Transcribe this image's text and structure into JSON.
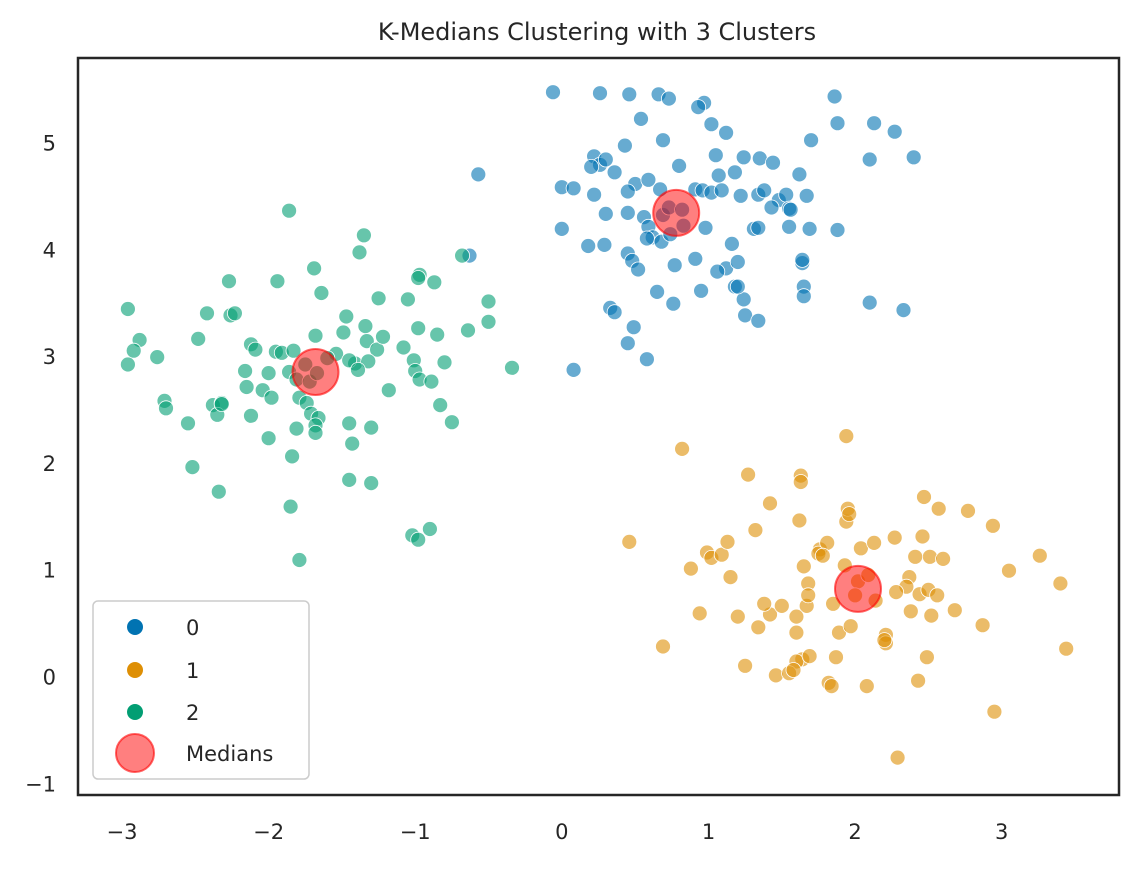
{
  "chart_data": {
    "type": "scatter",
    "title": "K-Medians Clustering with 3 Clusters",
    "xlabel": "",
    "ylabel": "",
    "xlim": [
      -3.3,
      3.8
    ],
    "ylim": [
      -1.1,
      5.8
    ],
    "xticks": [
      -3,
      -2,
      -1,
      0,
      1,
      2,
      3
    ],
    "yticks": [
      -1,
      0,
      1,
      2,
      3,
      4,
      5
    ],
    "xtick_labels": [
      "−3",
      "−2",
      "−1",
      "0",
      "1",
      "2",
      "3"
    ],
    "ytick_labels": [
      "−1",
      "0",
      "1",
      "2",
      "3",
      "4",
      "5"
    ],
    "grid": false,
    "legend_position": "lower-left",
    "series": [
      {
        "name": "0",
        "color": "#0173b2",
        "points": [
          [
            -0.06,
            5.48
          ],
          [
            0.26,
            5.47
          ],
          [
            0.46,
            5.46
          ],
          [
            0.66,
            5.46
          ],
          [
            0.73,
            5.42
          ],
          [
            0.97,
            5.38
          ],
          [
            0.93,
            5.34
          ],
          [
            1.86,
            5.44
          ],
          [
            0.54,
            5.23
          ],
          [
            1.02,
            5.18
          ],
          [
            1.12,
            5.1
          ],
          [
            1.88,
            5.19
          ],
          [
            2.13,
            5.19
          ],
          [
            2.27,
            5.11
          ],
          [
            2.1,
            4.85
          ],
          [
            2.4,
            4.87
          ],
          [
            0.43,
            4.98
          ],
          [
            0.69,
            5.03
          ],
          [
            0.22,
            4.88
          ],
          [
            0.26,
            4.8
          ],
          [
            0.3,
            4.85
          ],
          [
            0.36,
            4.73
          ],
          [
            0.2,
            4.78
          ],
          [
            1.05,
            4.89
          ],
          [
            1.18,
            4.73
          ],
          [
            1.24,
            4.87
          ],
          [
            1.35,
            4.86
          ],
          [
            1.44,
            4.82
          ],
          [
            1.7,
            5.03
          ],
          [
            1.62,
            4.71
          ],
          [
            0.8,
            4.79
          ],
          [
            0.5,
            4.62
          ],
          [
            0.59,
            4.66
          ],
          [
            0.67,
            4.57
          ],
          [
            0.45,
            4.55
          ],
          [
            0.0,
            4.59
          ],
          [
            0.08,
            4.58
          ],
          [
            0.22,
            4.52
          ],
          [
            0.3,
            4.34
          ],
          [
            0.45,
            4.35
          ],
          [
            0.56,
            4.31
          ],
          [
            0.69,
            4.33
          ],
          [
            0.73,
            4.4
          ],
          [
            0.82,
            4.38
          ],
          [
            0.91,
            4.57
          ],
          [
            0.96,
            4.56
          ],
          [
            1.02,
            4.54
          ],
          [
            1.07,
            4.7
          ],
          [
            1.09,
            4.56
          ],
          [
            1.22,
            4.51
          ],
          [
            1.34,
            4.52
          ],
          [
            1.38,
            4.56
          ],
          [
            1.48,
            4.47
          ],
          [
            1.53,
            4.52
          ],
          [
            1.55,
            4.39
          ],
          [
            1.67,
            4.51
          ],
          [
            1.55,
            4.22
          ],
          [
            1.43,
            4.4
          ],
          [
            1.31,
            4.2
          ],
          [
            1.34,
            4.21
          ],
          [
            1.16,
            4.06
          ],
          [
            0.98,
            4.21
          ],
          [
            0.59,
            4.22
          ],
          [
            0.62,
            4.12
          ],
          [
            0.58,
            4.11
          ],
          [
            0.68,
            4.08
          ],
          [
            0.74,
            4.15
          ],
          [
            0.83,
            4.23
          ],
          [
            0.0,
            4.2
          ],
          [
            0.18,
            4.04
          ],
          [
            0.29,
            4.05
          ],
          [
            0.45,
            3.97
          ],
          [
            0.48,
            3.9
          ],
          [
            0.52,
            3.82
          ],
          [
            0.77,
            3.86
          ],
          [
            0.91,
            3.92
          ],
          [
            1.12,
            3.83
          ],
          [
            1.2,
            3.89
          ],
          [
            1.06,
            3.8
          ],
          [
            1.18,
            3.66
          ],
          [
            1.24,
            3.54
          ],
          [
            1.64,
            3.88
          ],
          [
            1.64,
            3.91
          ],
          [
            1.69,
            4.2
          ],
          [
            1.88,
            4.19
          ],
          [
            1.65,
            3.66
          ],
          [
            1.65,
            3.57
          ],
          [
            0.33,
            3.46
          ],
          [
            0.36,
            3.42
          ],
          [
            0.45,
            3.13
          ],
          [
            0.49,
            3.28
          ],
          [
            0.65,
            3.61
          ],
          [
            0.76,
            3.5
          ],
          [
            0.95,
            3.62
          ],
          [
            1.25,
            3.39
          ],
          [
            1.34,
            3.34
          ],
          [
            2.1,
            3.51
          ],
          [
            2.33,
            3.44
          ],
          [
            0.58,
            2.98
          ],
          [
            0.08,
            2.88
          ],
          [
            -0.57,
            4.71
          ],
          [
            -0.63,
            3.95
          ],
          [
            1.2,
            3.66
          ],
          [
            1.56,
            4.38
          ]
        ]
      },
      {
        "name": "1",
        "color": "#de8f05",
        "points": [
          [
            0.82,
            2.14
          ],
          [
            1.94,
            2.26
          ],
          [
            1.27,
            1.9
          ],
          [
            1.63,
            1.89
          ],
          [
            1.63,
            1.83
          ],
          [
            1.42,
            1.63
          ],
          [
            1.32,
            1.38
          ],
          [
            1.62,
            1.47
          ],
          [
            1.94,
            1.46
          ],
          [
            1.95,
            1.58
          ],
          [
            1.96,
            1.53
          ],
          [
            2.47,
            1.69
          ],
          [
            2.57,
            1.58
          ],
          [
            2.77,
            1.56
          ],
          [
            2.94,
            1.42
          ],
          [
            0.46,
            1.27
          ],
          [
            0.99,
            1.17
          ],
          [
            1.02,
            1.12
          ],
          [
            1.09,
            1.15
          ],
          [
            1.13,
            1.27
          ],
          [
            1.76,
            1.2
          ],
          [
            1.75,
            1.16
          ],
          [
            1.81,
            1.26
          ],
          [
            1.78,
            1.14
          ],
          [
            2.04,
            1.21
          ],
          [
            2.13,
            1.26
          ],
          [
            2.27,
            1.31
          ],
          [
            2.46,
            1.32
          ],
          [
            2.51,
            1.13
          ],
          [
            2.6,
            1.11
          ],
          [
            3.26,
            1.14
          ],
          [
            0.88,
            1.02
          ],
          [
            1.15,
            0.94
          ],
          [
            1.65,
            1.04
          ],
          [
            1.68,
            0.88
          ],
          [
            2.02,
            0.9
          ],
          [
            2.09,
            0.96
          ],
          [
            2.37,
            0.94
          ],
          [
            2.41,
            1.13
          ],
          [
            3.05,
            1.0
          ],
          [
            3.4,
            0.88
          ],
          [
            2.35,
            0.85
          ],
          [
            2.44,
            0.78
          ],
          [
            2.5,
            0.82
          ],
          [
            2.56,
            0.77
          ],
          [
            1.85,
            0.69
          ],
          [
            1.67,
            0.67
          ],
          [
            1.6,
            0.57
          ],
          [
            1.42,
            0.59
          ],
          [
            1.2,
            0.57
          ],
          [
            1.38,
            0.69
          ],
          [
            1.5,
            0.67
          ],
          [
            1.68,
            0.77
          ],
          [
            2.0,
            0.77
          ],
          [
            2.14,
            0.72
          ],
          [
            1.89,
            0.42
          ],
          [
            1.97,
            0.48
          ],
          [
            2.21,
            0.4
          ],
          [
            2.38,
            0.62
          ],
          [
            2.52,
            0.58
          ],
          [
            2.68,
            0.63
          ],
          [
            2.87,
            0.49
          ],
          [
            0.94,
            0.6
          ],
          [
            1.34,
            0.47
          ],
          [
            1.6,
            0.42
          ],
          [
            1.64,
            0.17
          ],
          [
            0.69,
            0.29
          ],
          [
            1.25,
            0.11
          ],
          [
            1.6,
            0.15
          ],
          [
            1.69,
            0.2
          ],
          [
            1.87,
            0.19
          ],
          [
            2.21,
            0.32
          ],
          [
            2.2,
            0.35
          ],
          [
            2.49,
            0.19
          ],
          [
            3.44,
            0.27
          ],
          [
            1.46,
            0.02
          ],
          [
            1.55,
            0.04
          ],
          [
            1.58,
            0.07
          ],
          [
            1.82,
            -0.05
          ],
          [
            1.84,
            -0.08
          ],
          [
            2.08,
            -0.08
          ],
          [
            2.43,
            -0.03
          ],
          [
            2.95,
            -0.32
          ],
          [
            2.29,
            -0.75
          ],
          [
            1.93,
            1.05
          ],
          [
            2.28,
            0.8
          ]
        ]
      },
      {
        "name": "2",
        "color": "#029e73",
        "points": [
          [
            -1.86,
            4.37
          ],
          [
            -1.35,
            4.14
          ],
          [
            -1.38,
            3.98
          ],
          [
            -0.97,
            3.77
          ],
          [
            -0.98,
            3.74
          ],
          [
            -0.87,
            3.7
          ],
          [
            -1.69,
            3.83
          ],
          [
            -1.94,
            3.71
          ],
          [
            -2.27,
            3.71
          ],
          [
            -1.64,
            3.6
          ],
          [
            -1.25,
            3.55
          ],
          [
            -1.05,
            3.54
          ],
          [
            -2.42,
            3.41
          ],
          [
            -2.26,
            3.39
          ],
          [
            -2.23,
            3.41
          ],
          [
            -1.47,
            3.38
          ],
          [
            -0.5,
            3.52
          ],
          [
            -0.5,
            3.33
          ],
          [
            -2.96,
            3.45
          ],
          [
            -2.88,
            3.16
          ],
          [
            -2.92,
            3.06
          ],
          [
            -2.76,
            3.0
          ],
          [
            -2.96,
            2.93
          ],
          [
            -2.48,
            3.17
          ],
          [
            -2.12,
            3.12
          ],
          [
            -2.09,
            3.07
          ],
          [
            -1.95,
            3.05
          ],
          [
            -1.91,
            3.04
          ],
          [
            -1.83,
            3.06
          ],
          [
            -1.68,
            3.2
          ],
          [
            -1.54,
            3.03
          ],
          [
            -1.49,
            3.23
          ],
          [
            -1.34,
            3.29
          ],
          [
            -1.33,
            3.15
          ],
          [
            -1.26,
            3.07
          ],
          [
            -1.22,
            3.19
          ],
          [
            -1.08,
            3.09
          ],
          [
            -0.98,
            3.27
          ],
          [
            -0.85,
            3.21
          ],
          [
            -0.64,
            3.25
          ],
          [
            -0.8,
            2.95
          ],
          [
            -1.41,
            2.94
          ],
          [
            -1.6,
            2.99
          ],
          [
            -1.75,
            2.93
          ],
          [
            -2.16,
            2.87
          ],
          [
            -2.0,
            2.85
          ],
          [
            -1.86,
            2.86
          ],
          [
            -1.81,
            2.79
          ],
          [
            -1.72,
            2.77
          ],
          [
            -1.67,
            2.85
          ],
          [
            -1.45,
            2.97
          ],
          [
            -1.32,
            2.96
          ],
          [
            -1.39,
            2.88
          ],
          [
            -1.01,
            2.97
          ],
          [
            -1.0,
            2.87
          ],
          [
            -0.97,
            2.79
          ],
          [
            -0.89,
            2.77
          ],
          [
            -0.34,
            2.9
          ],
          [
            -2.71,
            2.59
          ],
          [
            -2.7,
            2.52
          ],
          [
            -2.38,
            2.55
          ],
          [
            -2.32,
            2.57
          ],
          [
            -2.15,
            2.72
          ],
          [
            -2.04,
            2.69
          ],
          [
            -1.98,
            2.62
          ],
          [
            -1.79,
            2.62
          ],
          [
            -1.74,
            2.57
          ],
          [
            -1.71,
            2.47
          ],
          [
            -1.66,
            2.43
          ],
          [
            -1.68,
            2.36
          ],
          [
            -1.68,
            2.29
          ],
          [
            -1.81,
            2.33
          ],
          [
            -2.12,
            2.45
          ],
          [
            -2.0,
            2.24
          ],
          [
            -2.35,
            2.46
          ],
          [
            -2.55,
            2.38
          ],
          [
            -1.84,
            2.07
          ],
          [
            -1.45,
            2.38
          ],
          [
            -1.43,
            2.19
          ],
          [
            -1.3,
            2.34
          ],
          [
            -1.18,
            2.69
          ],
          [
            -0.83,
            2.55
          ],
          [
            -0.75,
            2.39
          ],
          [
            -2.52,
            1.97
          ],
          [
            -2.34,
            1.74
          ],
          [
            -1.85,
            1.6
          ],
          [
            -1.45,
            1.85
          ],
          [
            -1.3,
            1.82
          ],
          [
            -1.79,
            1.1
          ],
          [
            -1.02,
            1.33
          ],
          [
            -0.98,
            1.29
          ],
          [
            -0.9,
            1.39
          ],
          [
            -0.68,
            3.95
          ],
          [
            -2.32,
            2.56
          ]
        ]
      }
    ],
    "medians": {
      "name": "Medians",
      "color": "#ff0000",
      "points": [
        [
          0.78,
          4.35
        ],
        [
          2.02,
          0.83
        ],
        [
          -1.68,
          2.86
        ]
      ]
    }
  }
}
